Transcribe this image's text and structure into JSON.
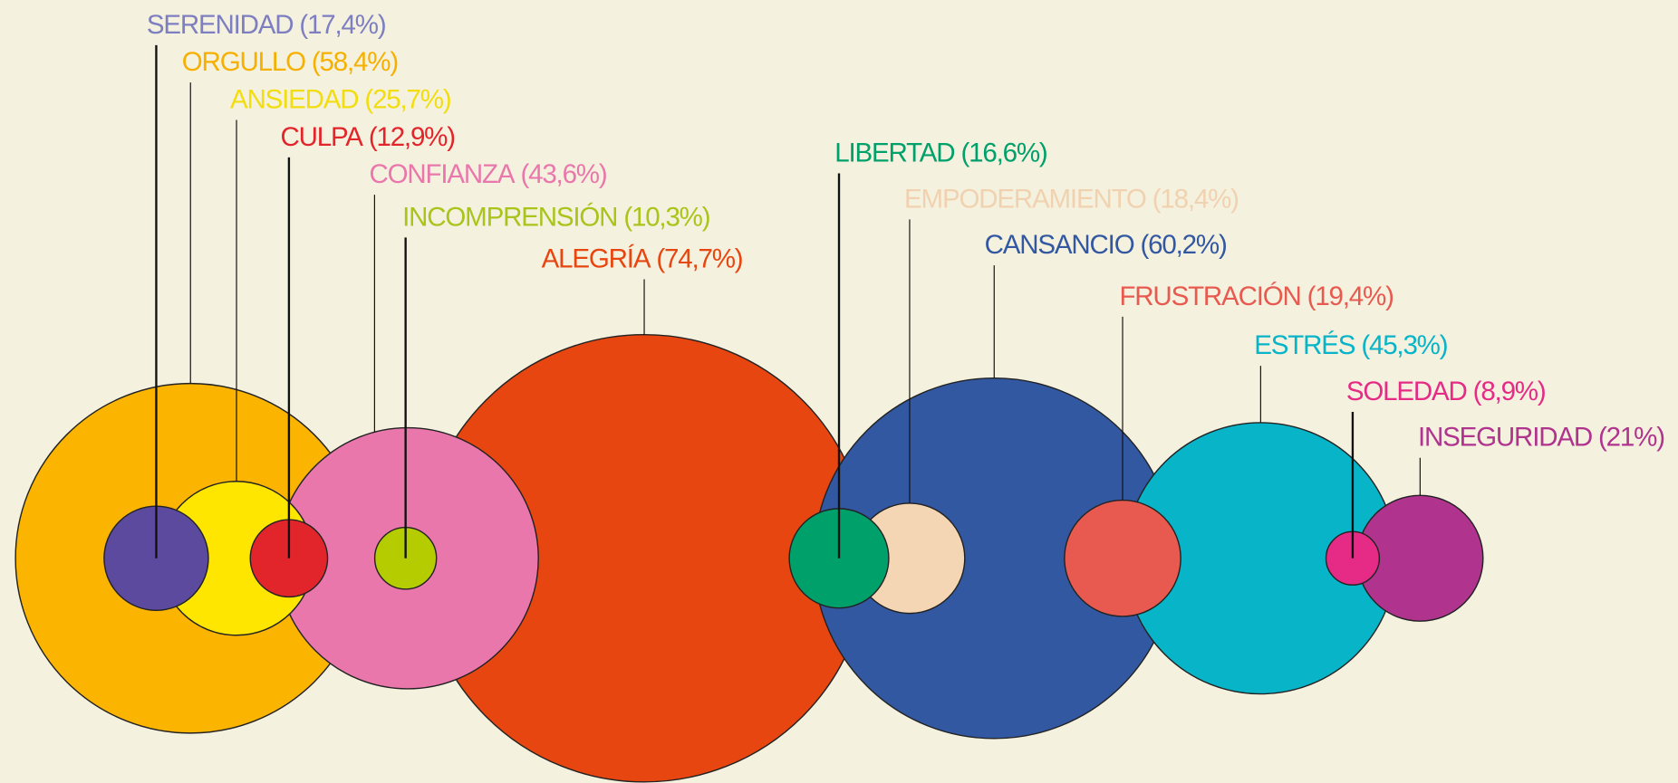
{
  "chart_data": {
    "type": "bubble",
    "categories": [
      "SERENIDAD",
      "ORGULLO",
      "ANSIEDAD",
      "CULPA",
      "CONFIANZA",
      "INCOMPRENSIÓN",
      "ALEGRÍA",
      "LIBERTAD",
      "EMPODERAMIENTO",
      "CANSANCIO",
      "FRUSTRACIÓN",
      "ESTRÉS",
      "SOLEDAD",
      "INSEGURIDAD"
    ],
    "values": [
      17.4,
      58.4,
      25.7,
      12.9,
      43.6,
      10.3,
      74.7,
      16.6,
      18.4,
      60.2,
      19.4,
      45.3,
      8.9,
      21
    ],
    "value_labels": [
      "(17,4%)",
      "(58,4%)",
      "(25,7%)",
      "(12,9%)",
      "(43,6%)",
      "(10,3%)",
      "(74,7%)",
      "(16,6%)",
      "(18,4%)",
      "(60,2%)",
      "(19,4%)",
      "(45,3%)",
      "(8,9%)",
      "(21%)"
    ],
    "colors": [
      "#5b4a9e",
      "#fbb400",
      "#ffe600",
      "#e2252b",
      "#e977ab",
      "#b5cc00",
      "#e84610",
      "#00a06a",
      "#f4d6b5",
      "#3258a2",
      "#e85a4f",
      "#07b4c8",
      "#e52b86",
      "#b0338e"
    ],
    "label_colors": [
      "#7d7fc0",
      "#f5b000",
      "#f2dd10",
      "#e2252b",
      "#e977ab",
      "#a9c41a",
      "#e84610",
      "#00a06a",
      "#f1d2b0",
      "#3258a2",
      "#e85a4f",
      "#07b4c8",
      "#e52b86",
      "#b0338e"
    ]
  }
}
